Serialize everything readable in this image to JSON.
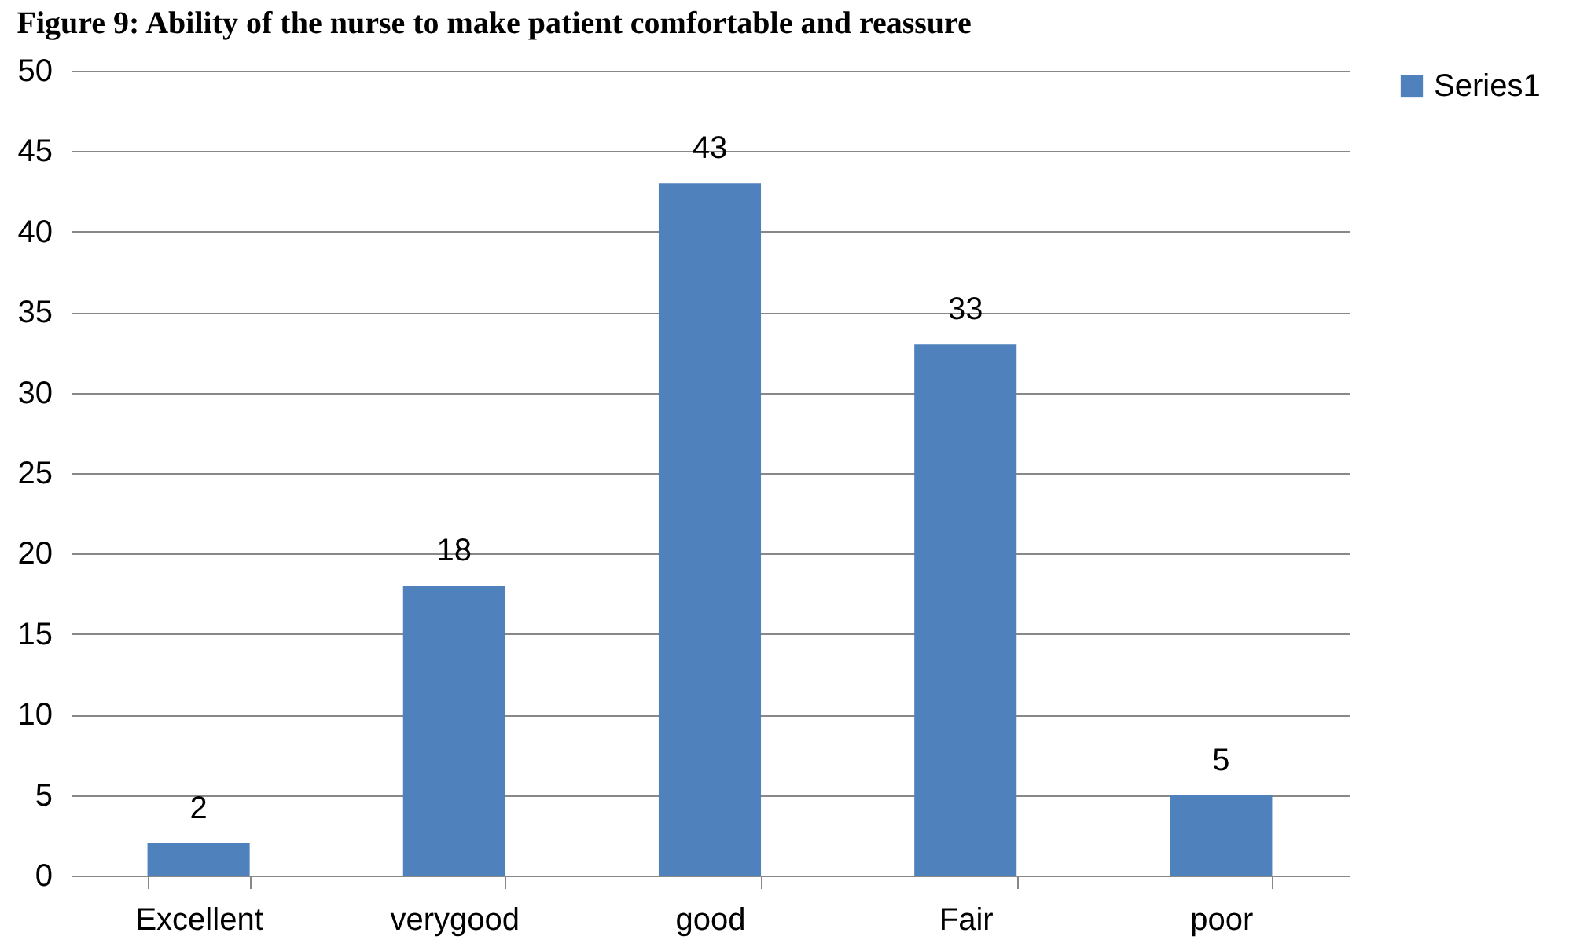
{
  "chart_data": {
    "type": "bar",
    "title": "Figure 9: Ability of the nurse to make patient comfortable and reassure",
    "categories": [
      "Excellent",
      "verygood",
      "good",
      "Fair",
      "poor"
    ],
    "series": [
      {
        "name": "Series1",
        "color": "#4f81bd",
        "values": [
          2,
          18,
          43,
          33,
          5
        ]
      }
    ],
    "ylim": [
      0,
      50
    ],
    "yticks": [
      0,
      5,
      10,
      15,
      20,
      25,
      30,
      35,
      40,
      45,
      50
    ],
    "grid": "y",
    "legend": "right",
    "data_labels": true
  }
}
